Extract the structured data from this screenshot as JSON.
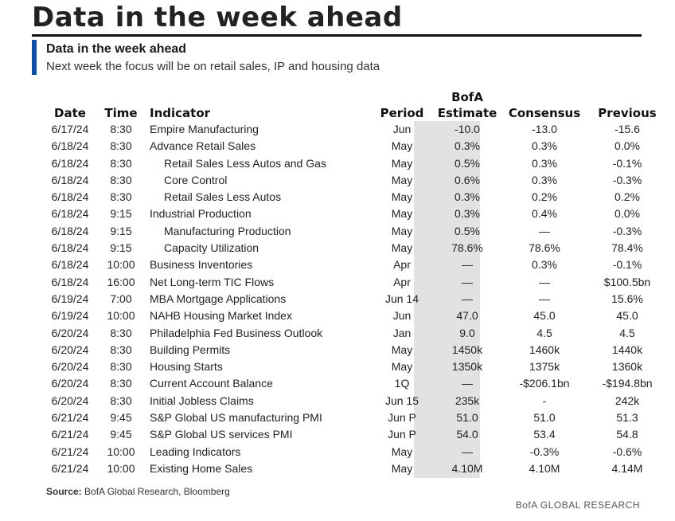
{
  "page_title": "Data in the week ahead",
  "panel": {
    "title": "Data in the week ahead",
    "caption": "Next week the focus will be on retail sales, IP and housing data"
  },
  "colors": {
    "accent": "#0b4ea2",
    "estimate_shade": "#e2e2e2"
  },
  "table": {
    "headers": {
      "date": "Date",
      "time": "Time",
      "indicator": "Indicator",
      "period": "Period",
      "estimate_line1": "BofA",
      "estimate_line2": "Estimate",
      "consensus": "Consensus",
      "previous": "Previous"
    },
    "rows": [
      {
        "date": "6/17/24",
        "time": "8:30",
        "indicator": "Empire Manufacturing",
        "indent": false,
        "period": "Jun",
        "estimate": "-10.0",
        "consensus": "-13.0",
        "previous": "-15.6"
      },
      {
        "date": "6/18/24",
        "time": "8:30",
        "indicator": "Advance Retail Sales",
        "indent": false,
        "period": "May",
        "estimate": "0.3%",
        "consensus": "0.3%",
        "previous": "0.0%"
      },
      {
        "date": "6/18/24",
        "time": "8:30",
        "indicator": "Retail Sales Less Autos and Gas",
        "indent": true,
        "period": "May",
        "estimate": "0.5%",
        "consensus": "0.3%",
        "previous": "-0.1%"
      },
      {
        "date": "6/18/24",
        "time": "8:30",
        "indicator": "Core Control",
        "indent": true,
        "period": "May",
        "estimate": "0.6%",
        "consensus": "0.3%",
        "previous": "-0.3%"
      },
      {
        "date": "6/18/24",
        "time": "8:30",
        "indicator": "Retail Sales Less Autos",
        "indent": true,
        "period": "May",
        "estimate": "0.3%",
        "consensus": "0.2%",
        "previous": "0.2%"
      },
      {
        "date": "6/18/24",
        "time": "9:15",
        "indicator": "Industrial Production",
        "indent": false,
        "period": "May",
        "estimate": "0.3%",
        "consensus": "0.4%",
        "previous": "0.0%"
      },
      {
        "date": "6/18/24",
        "time": "9:15",
        "indicator": "Manufacturing Production",
        "indent": true,
        "period": "May",
        "estimate": "0.5%",
        "consensus": "—",
        "previous": "-0.3%"
      },
      {
        "date": "6/18/24",
        "time": "9:15",
        "indicator": "Capacity Utilization",
        "indent": true,
        "period": "May",
        "estimate": "78.6%",
        "consensus": "78.6%",
        "previous": "78.4%"
      },
      {
        "date": "6/18/24",
        "time": "10:00",
        "indicator": "Business Inventories",
        "indent": false,
        "period": "Apr",
        "estimate": "—",
        "consensus": "0.3%",
        "previous": "-0.1%"
      },
      {
        "date": "6/18/24",
        "time": "16:00",
        "indicator": "Net Long-term TIC Flows",
        "indent": false,
        "period": "Apr",
        "estimate": "—",
        "consensus": "—",
        "previous": "$100.5bn"
      },
      {
        "date": "6/19/24",
        "time": "7:00",
        "indicator": "MBA Mortgage Applications",
        "indent": false,
        "period": "Jun 14",
        "estimate": "—",
        "consensus": "—",
        "previous": "15.6%"
      },
      {
        "date": "6/19/24",
        "time": "10:00",
        "indicator": "NAHB Housing Market Index",
        "indent": false,
        "period": "Jun",
        "estimate": "47.0",
        "consensus": "45.0",
        "previous": "45.0"
      },
      {
        "date": "6/20/24",
        "time": "8:30",
        "indicator": "Philadelphia Fed Business Outlook",
        "indent": false,
        "period": "Jan",
        "estimate": "9.0",
        "consensus": "4.5",
        "previous": "4.5"
      },
      {
        "date": "6/20/24",
        "time": "8:30",
        "indicator": "Building Permits",
        "indent": false,
        "period": "May",
        "estimate": "1450k",
        "consensus": "1460k",
        "previous": "1440k"
      },
      {
        "date": "6/20/24",
        "time": "8:30",
        "indicator": "Housing Starts",
        "indent": false,
        "period": "May",
        "estimate": "1350k",
        "consensus": "1375k",
        "previous": "1360k"
      },
      {
        "date": "6/20/24",
        "time": "8:30",
        "indicator": "Current Account Balance",
        "indent": false,
        "period": "1Q",
        "estimate": "—",
        "consensus": "-$206.1bn",
        "previous": "-$194.8bn"
      },
      {
        "date": "6/20/24",
        "time": "8:30",
        "indicator": "Initial Jobless Claims",
        "indent": false,
        "period": "Jun 15",
        "estimate": "235k",
        "consensus": "-",
        "previous": "242k"
      },
      {
        "date": "6/21/24",
        "time": "9:45",
        "indicator": "S&P Global US manufacturing PMI",
        "indent": false,
        "period": "Jun P",
        "estimate": "51.0",
        "consensus": "51.0",
        "previous": "51.3"
      },
      {
        "date": "6/21/24",
        "time": "9:45",
        "indicator": "S&P Global US services PMI",
        "indent": false,
        "period": "Jun P",
        "estimate": "54.0",
        "consensus": "53.4",
        "previous": "54.8"
      },
      {
        "date": "6/21/24",
        "time": "10:00",
        "indicator": "Leading Indicators",
        "indent": false,
        "period": "May",
        "estimate": "—",
        "consensus": "-0.3%",
        "previous": "-0.6%"
      },
      {
        "date": "6/21/24",
        "time": "10:00",
        "indicator": "Existing Home Sales",
        "indent": false,
        "period": "May",
        "estimate": "4.10M",
        "consensus": "4.10M",
        "previous": "4.14M"
      }
    ]
  },
  "source": {
    "label": "Source:",
    "text": "BofA Global Research, Bloomberg"
  },
  "footer_brand": "BofA GLOBAL RESEARCH"
}
